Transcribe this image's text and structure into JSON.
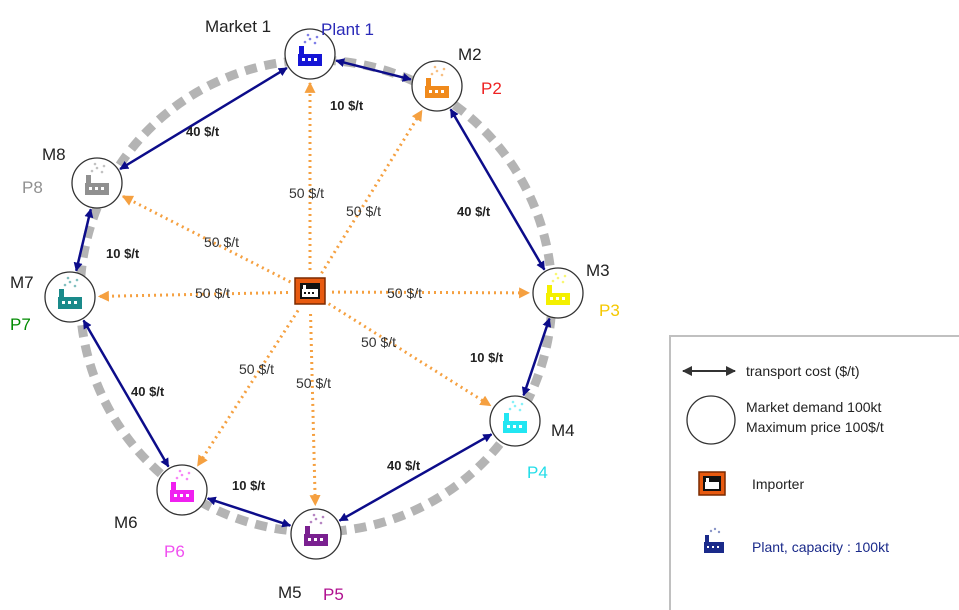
{
  "nodes": [
    {
      "id": "M1",
      "market_label": "Market 1",
      "plant_label": "Plant 1",
      "color": "#1515d6",
      "plant_color": "#2a2ab8"
    },
    {
      "id": "M2",
      "market_label": "M2",
      "plant_label": "P2",
      "color": "#f08a1c",
      "plant_color": "#ee2222"
    },
    {
      "id": "M3",
      "market_label": "M3",
      "plant_label": "P3",
      "color": "#f4f000",
      "plant_color": "#f5c800"
    },
    {
      "id": "M4",
      "market_label": "M4",
      "plant_label": "P4",
      "color": "#22e6f2",
      "plant_color": "#22dde8"
    },
    {
      "id": "M5",
      "market_label": "M5",
      "plant_label": "P5",
      "color": "#7a2090",
      "plant_color": "#b01090"
    },
    {
      "id": "M6",
      "market_label": "M6",
      "plant_label": "P6",
      "color": "#f020f0",
      "plant_color": "#f050f0"
    },
    {
      "id": "M7",
      "market_label": "M7",
      "plant_label": "P7",
      "color": "#1a8a8a",
      "plant_color": "#008a00"
    },
    {
      "id": "M8",
      "market_label": "M8",
      "plant_label": "P8",
      "color": "#909090",
      "plant_color": "#909090"
    }
  ],
  "links": [
    {
      "from": "M1",
      "to": "M2",
      "cost": "10 $/t"
    },
    {
      "from": "M2",
      "to": "M3",
      "cost": "40 $/t"
    },
    {
      "from": "M3",
      "to": "M4",
      "cost": "10 $/t"
    },
    {
      "from": "M4",
      "to": "M5",
      "cost": "40 $/t"
    },
    {
      "from": "M5",
      "to": "M6",
      "cost": "10 $/t"
    },
    {
      "from": "M6",
      "to": "M7",
      "cost": "40 $/t"
    },
    {
      "from": "M7",
      "to": "M8",
      "cost": "10 $/t"
    },
    {
      "from": "M8",
      "to": "M1",
      "cost": "40 $/t"
    }
  ],
  "importer_links": [
    {
      "to": "M1",
      "cost": "50 $/t"
    },
    {
      "to": "M2",
      "cost": "50 $/t"
    },
    {
      "to": "M3",
      "cost": "50 $/t"
    },
    {
      "to": "M4",
      "cost": "50 $/t"
    },
    {
      "to": "M5",
      "cost": "50 $/t"
    },
    {
      "to": "M6",
      "cost": "50 $/t"
    },
    {
      "to": "M7",
      "cost": "50 $/t"
    },
    {
      "to": "M8",
      "cost": "50 $/t"
    }
  ],
  "colors": {
    "transport_arrow": "#0c0c8a",
    "importer_arrow": "#f5a040",
    "ring": "#b4b4b4",
    "importer_box": "#e85a10"
  },
  "legend": {
    "transport": "transport cost ($/t)",
    "market_line1": "Market demand 100kt",
    "market_line2": "Maximum price 100$/t",
    "importer": "Importer",
    "plant": "Plant, capacity : 100kt",
    "plant_color": "#1a2a8a"
  }
}
